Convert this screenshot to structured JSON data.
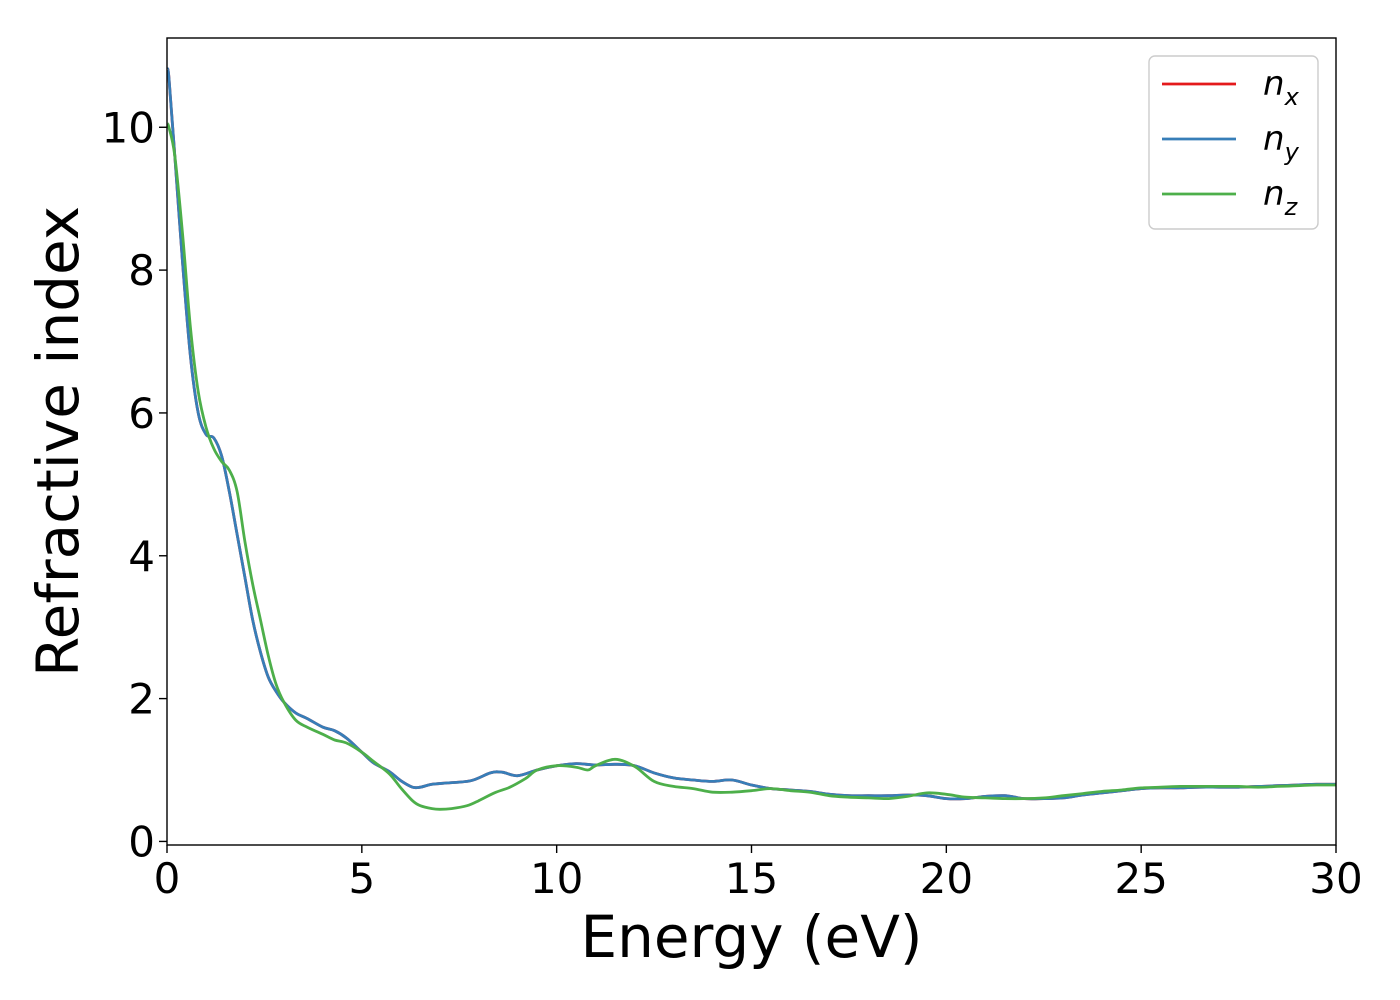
{
  "chart_data": {
    "type": "line",
    "xlabel": "Energy (eV)",
    "ylabel": "Refractive index",
    "xlim": [
      0,
      30
    ],
    "ylim": [
      -0.05,
      11.25
    ],
    "xticks": [
      0,
      5,
      10,
      15,
      20,
      25,
      30
    ],
    "yticks": [
      0,
      2,
      4,
      6,
      8,
      10
    ],
    "grid": false,
    "legend_position": "top-right",
    "series": [
      {
        "name": "n_x",
        "label_base": "n",
        "label_sub": "x",
        "color": "#e41a1c",
        "x": [
          0,
          0.05,
          0.2,
          0.4,
          0.6,
          0.8,
          1.0,
          1.2,
          1.4,
          1.6,
          1.8,
          2.0,
          2.2,
          2.4,
          2.6,
          2.8,
          3.0,
          3.3,
          3.6,
          4.0,
          4.3,
          4.6,
          5.0,
          5.3,
          5.7,
          6.0,
          6.3,
          6.5,
          6.8,
          7.2,
          7.8,
          8.3,
          8.6,
          9.0,
          9.5,
          10.0,
          10.5,
          11.0,
          11.5,
          12.0,
          12.5,
          13.0,
          13.5,
          14.0,
          14.5,
          15.0,
          15.5,
          16.0,
          16.5,
          17.0,
          17.5,
          18.0,
          18.5,
          19.0,
          19.5,
          20.0,
          20.5,
          21.0,
          21.5,
          22.0,
          22.5,
          23.0,
          23.5,
          24.0,
          24.5,
          25.0,
          25.5,
          26.0,
          26.5,
          27.0,
          27.5,
          28.0,
          28.5,
          29.0,
          29.5,
          30.0
        ],
        "y": [
          10.8,
          10.7,
          9.6,
          8.1,
          6.8,
          6.0,
          5.7,
          5.65,
          5.4,
          4.9,
          4.3,
          3.7,
          3.1,
          2.65,
          2.3,
          2.1,
          1.95,
          1.8,
          1.72,
          1.6,
          1.55,
          1.45,
          1.25,
          1.1,
          0.98,
          0.85,
          0.76,
          0.76,
          0.8,
          0.82,
          0.85,
          0.96,
          0.97,
          0.92,
          1.0,
          1.06,
          1.09,
          1.07,
          1.08,
          1.06,
          0.96,
          0.89,
          0.86,
          0.84,
          0.86,
          0.79,
          0.74,
          0.72,
          0.7,
          0.66,
          0.64,
          0.64,
          0.64,
          0.65,
          0.64,
          0.6,
          0.6,
          0.63,
          0.64,
          0.6,
          0.6,
          0.61,
          0.65,
          0.68,
          0.71,
          0.74,
          0.75,
          0.75,
          0.76,
          0.76,
          0.76,
          0.77,
          0.78,
          0.79,
          0.8,
          0.8
        ]
      },
      {
        "name": "n_y",
        "label_base": "n",
        "label_sub": "y",
        "color": "#377eb8",
        "x": [
          0,
          0.05,
          0.2,
          0.4,
          0.6,
          0.8,
          1.0,
          1.2,
          1.4,
          1.6,
          1.8,
          2.0,
          2.2,
          2.4,
          2.6,
          2.8,
          3.0,
          3.3,
          3.6,
          4.0,
          4.3,
          4.6,
          5.0,
          5.3,
          5.7,
          6.0,
          6.3,
          6.5,
          6.8,
          7.2,
          7.8,
          8.3,
          8.6,
          9.0,
          9.5,
          10.0,
          10.5,
          11.0,
          11.5,
          12.0,
          12.5,
          13.0,
          13.5,
          14.0,
          14.5,
          15.0,
          15.5,
          16.0,
          16.5,
          17.0,
          17.5,
          18.0,
          18.5,
          19.0,
          19.5,
          20.0,
          20.5,
          21.0,
          21.5,
          22.0,
          22.5,
          23.0,
          23.5,
          24.0,
          24.5,
          25.0,
          25.5,
          26.0,
          26.5,
          27.0,
          27.5,
          28.0,
          28.5,
          29.0,
          29.5,
          30.0
        ],
        "y": [
          10.8,
          10.7,
          9.6,
          8.1,
          6.8,
          6.0,
          5.7,
          5.65,
          5.4,
          4.9,
          4.3,
          3.7,
          3.1,
          2.65,
          2.3,
          2.1,
          1.95,
          1.8,
          1.72,
          1.6,
          1.55,
          1.45,
          1.25,
          1.1,
          0.98,
          0.85,
          0.76,
          0.76,
          0.8,
          0.82,
          0.85,
          0.96,
          0.97,
          0.92,
          1.0,
          1.06,
          1.09,
          1.07,
          1.08,
          1.06,
          0.96,
          0.89,
          0.86,
          0.84,
          0.86,
          0.79,
          0.74,
          0.72,
          0.7,
          0.66,
          0.64,
          0.64,
          0.64,
          0.65,
          0.64,
          0.6,
          0.6,
          0.63,
          0.64,
          0.6,
          0.6,
          0.61,
          0.65,
          0.68,
          0.71,
          0.74,
          0.75,
          0.75,
          0.76,
          0.76,
          0.76,
          0.77,
          0.78,
          0.79,
          0.8,
          0.8
        ]
      },
      {
        "name": "n_z",
        "label_base": "n",
        "label_sub": "z",
        "color": "#4daf4a",
        "x": [
          0,
          0.05,
          0.2,
          0.4,
          0.6,
          0.8,
          1.0,
          1.2,
          1.4,
          1.6,
          1.8,
          2.0,
          2.2,
          2.4,
          2.6,
          2.8,
          3.0,
          3.3,
          3.6,
          4.0,
          4.3,
          4.6,
          5.0,
          5.3,
          5.7,
          6.0,
          6.3,
          6.5,
          6.8,
          7.0,
          7.3,
          7.7,
          8.0,
          8.4,
          8.8,
          9.2,
          9.5,
          10.0,
          10.5,
          10.8,
          11.0,
          11.5,
          12.0,
          12.5,
          13.0,
          13.5,
          14.0,
          14.5,
          15.0,
          15.5,
          16.0,
          16.5,
          17.0,
          17.5,
          18.0,
          18.5,
          19.0,
          19.5,
          20.0,
          20.5,
          21.0,
          21.5,
          22.0,
          22.5,
          23.0,
          23.5,
          24.0,
          24.5,
          25.0,
          25.5,
          26.0,
          26.5,
          27.0,
          27.5,
          28.0,
          28.5,
          29.0,
          29.5,
          30.0
        ],
        "y": [
          10.05,
          10.0,
          9.6,
          8.5,
          7.2,
          6.3,
          5.8,
          5.5,
          5.32,
          5.2,
          4.9,
          4.2,
          3.6,
          3.1,
          2.6,
          2.2,
          1.95,
          1.7,
          1.6,
          1.5,
          1.42,
          1.38,
          1.25,
          1.12,
          0.95,
          0.75,
          0.57,
          0.5,
          0.46,
          0.45,
          0.46,
          0.5,
          0.57,
          0.68,
          0.76,
          0.88,
          1.0,
          1.06,
          1.04,
          1.0,
          1.06,
          1.15,
          1.05,
          0.84,
          0.77,
          0.74,
          0.69,
          0.69,
          0.71,
          0.74,
          0.71,
          0.69,
          0.64,
          0.62,
          0.61,
          0.6,
          0.63,
          0.68,
          0.66,
          0.62,
          0.61,
          0.6,
          0.6,
          0.61,
          0.64,
          0.67,
          0.7,
          0.72,
          0.75,
          0.76,
          0.77,
          0.77,
          0.77,
          0.77,
          0.76,
          0.77,
          0.78,
          0.79,
          0.79
        ]
      }
    ]
  }
}
